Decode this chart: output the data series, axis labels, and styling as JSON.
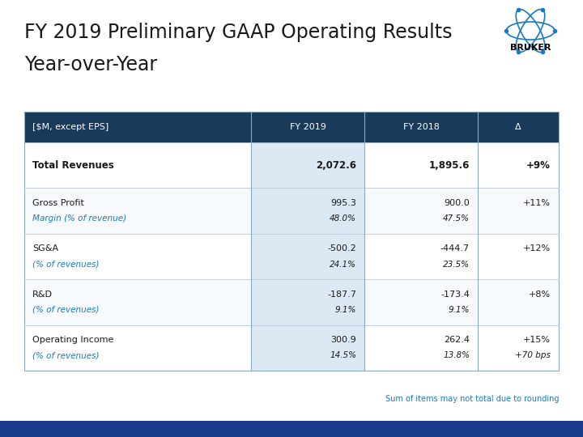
{
  "title_line1": "FY 2019 Preliminary GAAP Operating Results",
  "title_line2": "Year-over-Year",
  "title_fontsize": 17,
  "header_bg": "#1a3a5c",
  "header_text_color": "#ffffff",
  "header_labels": [
    "[$M, except EPS]",
    "FY 2019",
    "FY 2018",
    "Δ"
  ],
  "row_highlight_bg": "#dce9f5",
  "rows": [
    {
      "label": "Total Revenues",
      "label_bold": true,
      "sub_label": null,
      "fy2019": "2,072.6",
      "fy2019_sub": null,
      "fy2018": "1,895.6",
      "fy2018_sub": null,
      "delta": "+9%",
      "delta_sub": null,
      "bg": "#ffffff"
    },
    {
      "label": "Gross Profit",
      "label_bold": false,
      "sub_label": "Margin (% of revenue)",
      "fy2019": "995.3",
      "fy2019_sub": "48.0%",
      "fy2018": "900.0",
      "fy2018_sub": "47.5%",
      "delta": "+11%",
      "delta_sub": null,
      "bg": "#ffffff"
    },
    {
      "label": "SG&A",
      "label_bold": false,
      "sub_label": "(% of revenues)",
      "fy2019": "-500.2",
      "fy2019_sub": "24.1%",
      "fy2018": "-444.7",
      "fy2018_sub": "23.5%",
      "delta": "+12%",
      "delta_sub": null,
      "bg": "#ffffff"
    },
    {
      "label": "R&D",
      "label_bold": false,
      "sub_label": "(% of revenues)",
      "fy2019": "-187.7",
      "fy2019_sub": "9.1%",
      "fy2018": "-173.4",
      "fy2018_sub": "9.1%",
      "delta": "+8%",
      "delta_sub": null,
      "bg": "#ffffff"
    },
    {
      "label": "Operating Income",
      "label_bold": false,
      "sub_label": "(% of revenues)",
      "fy2019": "300.9",
      "fy2019_sub": "14.5%",
      "fy2018": "262.4",
      "fy2018_sub": "13.8%",
      "delta": "+15%",
      "delta_sub": "+70 bps",
      "bg": "#ffffff"
    }
  ],
  "footer_text": "Sum of items may not total due to rounding",
  "footer_color": "#1a7abf",
  "bottom_bar_color": "#1a3a8c",
  "blue_label_color": "#1a7abf",
  "header_fs": 8,
  "cell_fs": 8,
  "cell_sub_fs": 7.5
}
